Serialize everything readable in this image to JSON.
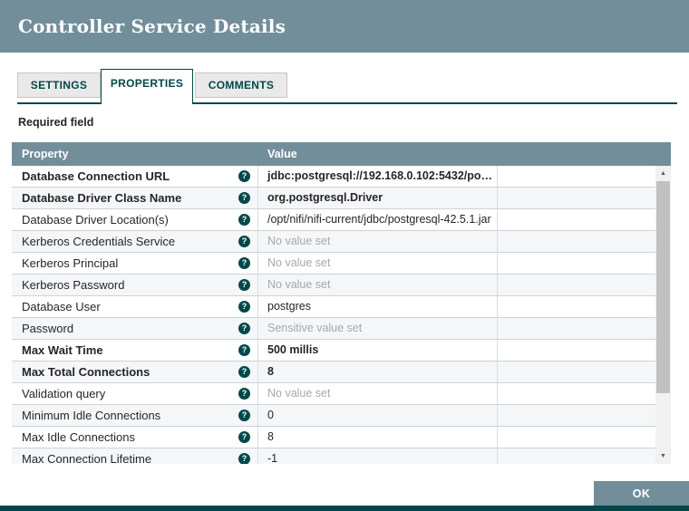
{
  "dialog": {
    "title": "Controller Service Details",
    "tabs": [
      {
        "label": "SETTINGS",
        "active": false
      },
      {
        "label": "PROPERTIES",
        "active": true
      },
      {
        "label": "COMMENTS",
        "active": false
      }
    ],
    "required_field_note": "Required field",
    "ok_label": "OK",
    "help_icon": {
      "name": "question-circle-icon",
      "glyph": "?"
    },
    "scroll_icons": {
      "up": "▲",
      "down": "▼"
    },
    "colors": {
      "header_bg": "#728E9B",
      "accent_dark": "#004849",
      "unset_text": "#a8a8a8",
      "row_alt_bg": "#f4f6f8"
    },
    "table": {
      "columns": {
        "property": "Property",
        "value": "Value"
      },
      "rows": [
        {
          "property": "Database Connection URL",
          "required": true,
          "value": "jdbc:postgresql://192.168.0.102:5432/postgr...",
          "value_state": "set"
        },
        {
          "property": "Database Driver Class Name",
          "required": true,
          "value": "org.postgresql.Driver",
          "value_state": "set"
        },
        {
          "property": "Database Driver Location(s)",
          "required": false,
          "value": "/opt/nifi/nifi-current/jdbc/postgresql-42.5.1.jar",
          "value_state": "set"
        },
        {
          "property": "Kerberos Credentials Service",
          "required": false,
          "value": "No value set",
          "value_state": "unset"
        },
        {
          "property": "Kerberos Principal",
          "required": false,
          "value": "No value set",
          "value_state": "unset"
        },
        {
          "property": "Kerberos Password",
          "required": false,
          "value": "No value set",
          "value_state": "unset"
        },
        {
          "property": "Database User",
          "required": false,
          "value": "postgres",
          "value_state": "set"
        },
        {
          "property": "Password",
          "required": false,
          "value": "Sensitive value set",
          "value_state": "sensitive"
        },
        {
          "property": "Max Wait Time",
          "required": true,
          "value": "500 millis",
          "value_state": "set"
        },
        {
          "property": "Max Total Connections",
          "required": true,
          "value": "8",
          "value_state": "set"
        },
        {
          "property": "Validation query",
          "required": false,
          "value": "No value set",
          "value_state": "unset"
        },
        {
          "property": "Minimum Idle Connections",
          "required": false,
          "value": "0",
          "value_state": "set"
        },
        {
          "property": "Max Idle Connections",
          "required": false,
          "value": "8",
          "value_state": "set"
        },
        {
          "property": "Max Connection Lifetime",
          "required": false,
          "value": "-1",
          "value_state": "set"
        }
      ]
    }
  }
}
